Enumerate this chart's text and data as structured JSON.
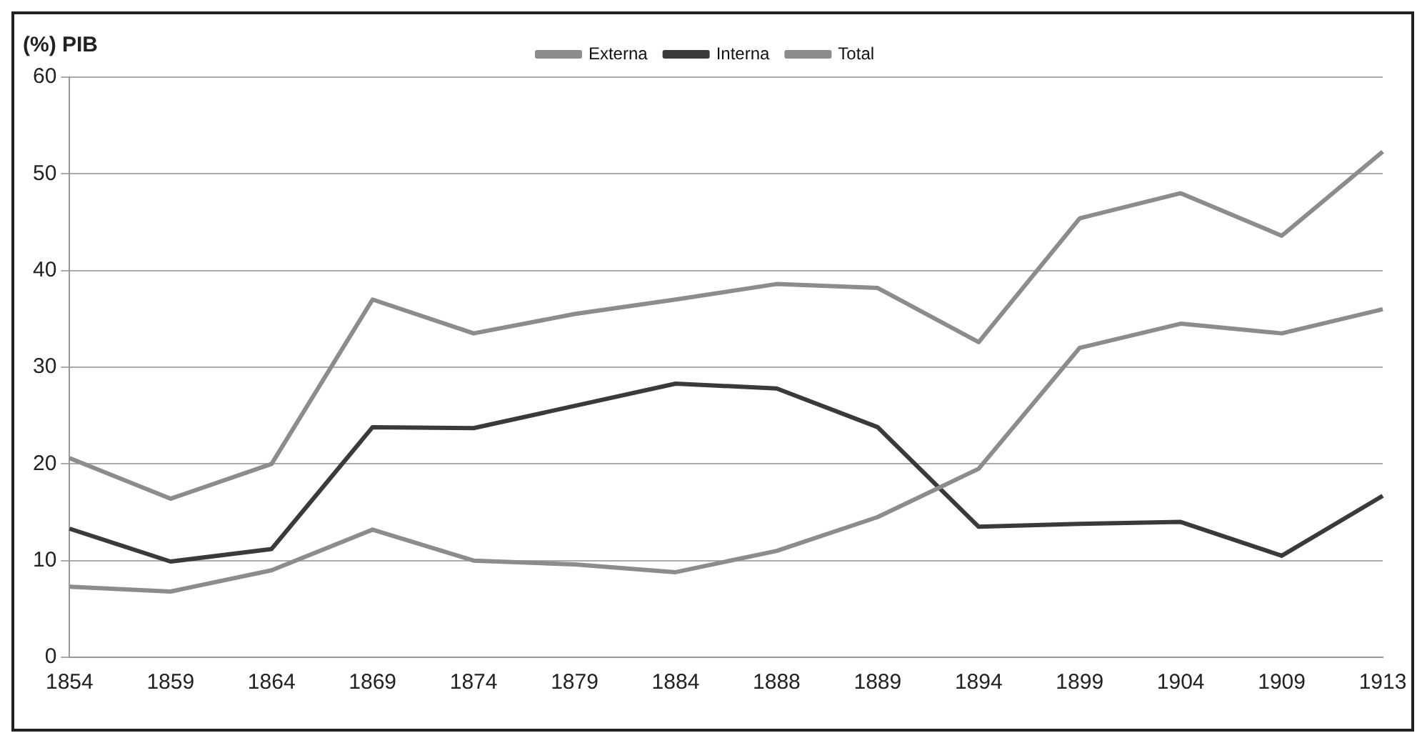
{
  "chart_data": {
    "type": "line",
    "ylabel": "(%) PIB",
    "categories": [
      "1854",
      "1859",
      "1864",
      "1869",
      "1874",
      "1879",
      "1884",
      "1888",
      "1889",
      "1894",
      "1899",
      "1904",
      "1909",
      "1913"
    ],
    "series": [
      {
        "name": "Externa",
        "color": "#8c8c8c",
        "values": [
          7.3,
          6.8,
          9,
          13.2,
          10,
          9.6,
          8.8,
          11,
          14.5,
          19.5,
          32,
          34.5,
          33.5,
          36
        ]
      },
      {
        "name": "Interna",
        "color": "#3a3a3a",
        "values": [
          13.3,
          9.9,
          11.2,
          23.8,
          23.7,
          26,
          28.3,
          27.8,
          23.8,
          13.5,
          13.8,
          14,
          10.5,
          16.7
        ]
      },
      {
        "name": "Total",
        "color": "#8c8c8c",
        "values": [
          20.6,
          16.4,
          20,
          37,
          33.5,
          35.5,
          37,
          38.6,
          38.2,
          32.6,
          45.4,
          48,
          43.6,
          52.3
        ]
      }
    ],
    "ylim": [
      0,
      60
    ],
    "yticks": [
      0,
      10,
      20,
      30,
      40,
      50,
      60
    ],
    "grid": "y",
    "legend": "top",
    "marker": "none",
    "line_style": "solid"
  }
}
